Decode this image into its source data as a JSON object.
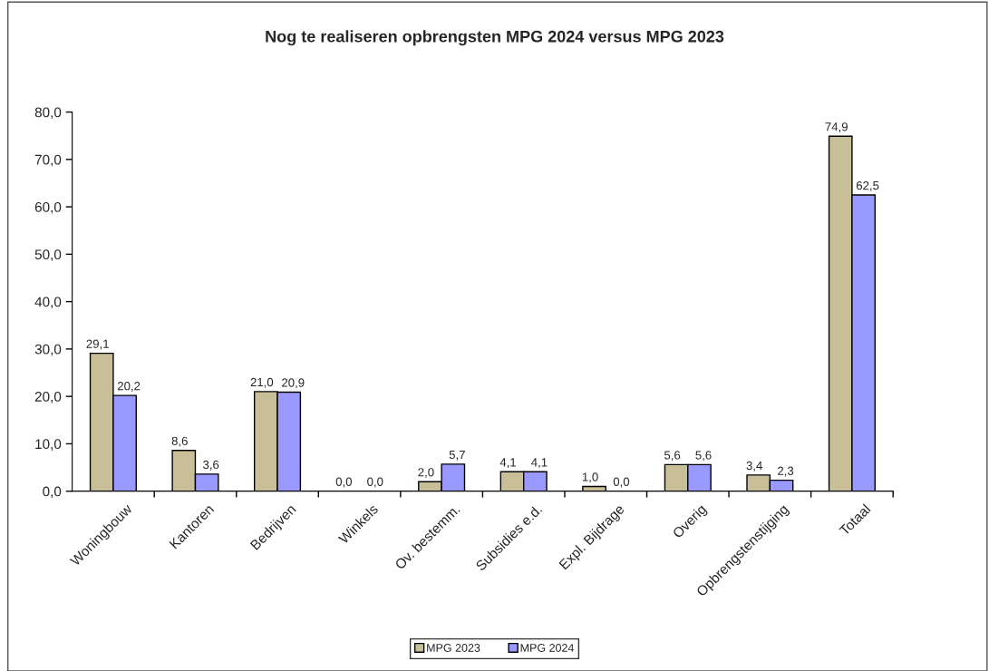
{
  "chart_data": {
    "type": "bar",
    "title": "Nog te realiseren opbrengsten MPG 2024 versus MPG 2023",
    "categories": [
      "Woningbouw",
      "Kantoren",
      "Bedrijven",
      "Winkels",
      "Ov. bestemm.",
      "Subsidies e.d.",
      "Expl. Bijdrage",
      "Overig",
      "Opbrengstenstijging",
      "Totaal"
    ],
    "series": [
      {
        "name": "MPG 2023",
        "color": "#c8be98",
        "values": [
          29.1,
          8.6,
          21.0,
          0.0,
          2.0,
          4.1,
          1.0,
          5.6,
          3.4,
          74.9
        ],
        "value_labels": [
          "29,1",
          "8,6",
          "21,0",
          "0,0",
          "2,0",
          "4,1",
          "1,0",
          "5,6",
          "3,4",
          "74,9"
        ]
      },
      {
        "name": "MPG 2024",
        "color": "#9999ff",
        "values": [
          20.2,
          3.6,
          20.9,
          0.0,
          5.7,
          4.1,
          0.0,
          5.6,
          2.3,
          62.5
        ],
        "value_labels": [
          "20,2",
          "3,6",
          "20,9",
          "0,0",
          "5,7",
          "4,1",
          "0,0",
          "5,6",
          "2,3",
          "62,5"
        ]
      }
    ],
    "ylim": [
      0,
      80
    ],
    "yticks": [
      {
        "value": 0,
        "label": "0,0"
      },
      {
        "value": 10,
        "label": "10,0"
      },
      {
        "value": 20,
        "label": "20,0"
      },
      {
        "value": 30,
        "label": "30,0"
      },
      {
        "value": 40,
        "label": "40,0"
      },
      {
        "value": 50,
        "label": "50,0"
      },
      {
        "value": 60,
        "label": "60,0"
      },
      {
        "value": 70,
        "label": "70,0"
      },
      {
        "value": 80,
        "label": "80,0"
      }
    ],
    "grid": false,
    "legend": "bottom"
  }
}
